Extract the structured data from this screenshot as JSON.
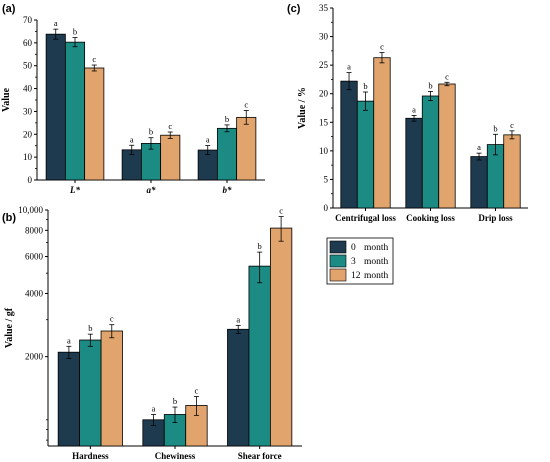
{
  "colors": {
    "0 month": "#1e3a4e",
    "3 month": "#1c8b84",
    "12 month": "#e1a46c"
  },
  "legend": {
    "entries": [
      {
        "num": "0",
        "unit": "month",
        "color": "#1e3a4e"
      },
      {
        "num": "3",
        "unit": "month",
        "color": "#1c8b84"
      },
      {
        "num": "12",
        "unit": "month",
        "color": "#e1a46c"
      }
    ]
  },
  "chart_data": [
    {
      "panel": "(a)",
      "type": "bar",
      "ylabel": "Value",
      "ylim": [
        0,
        70
      ],
      "yticks": [
        0,
        10,
        20,
        30,
        40,
        50,
        60,
        70
      ],
      "categories": [
        "L*",
        "a*",
        "b*"
      ],
      "italic_categories": true,
      "series": [
        {
          "name": "0 month",
          "values": [
            63.8,
            13.2,
            13.1
          ],
          "errors": [
            2.2,
            2.0,
            2.0
          ],
          "letters": [
            "a",
            "a",
            "a"
          ]
        },
        {
          "name": "3 month",
          "values": [
            60.3,
            16.0,
            22.6
          ],
          "errors": [
            2.0,
            2.5,
            1.5
          ],
          "letters": [
            "b",
            "b",
            "b"
          ]
        },
        {
          "name": "12 month",
          "values": [
            49.0,
            19.6,
            27.4
          ],
          "errors": [
            1.3,
            1.4,
            3.0
          ],
          "letters": [
            "c",
            "c",
            "c"
          ]
        }
      ]
    },
    {
      "panel": "(b)",
      "type": "bar",
      "ylabel": "Value / gf",
      "yscale": "log",
      "ylim": [
        750,
        10000
      ],
      "yticks": [
        2000,
        4000,
        6000,
        8000,
        10000
      ],
      "ytick_labels": [
        "2000",
        "4000",
        "6000",
        "8000",
        "10,000"
      ],
      "categories": [
        "Hardness",
        "Chewiness",
        "Shear force"
      ],
      "series": [
        {
          "name": "0 month",
          "values": [
            2100,
            1000,
            2700
          ],
          "errors": [
            140,
            60,
            120
          ],
          "letters": [
            "a",
            "a",
            "a"
          ]
        },
        {
          "name": "3 month",
          "values": [
            2400,
            1060,
            5400
          ],
          "errors": [
            160,
            90,
            900
          ],
          "letters": [
            "b",
            "b",
            "b"
          ]
        },
        {
          "name": "12 month",
          "values": [
            2650,
            1170,
            8200
          ],
          "errors": [
            190,
            120,
            1100
          ],
          "letters": [
            "c",
            "c",
            "c"
          ]
        }
      ]
    },
    {
      "panel": "(c)",
      "type": "bar",
      "ylabel": "Value / %",
      "ylim": [
        0,
        35
      ],
      "yticks": [
        0,
        5,
        10,
        15,
        20,
        25,
        30,
        35
      ],
      "categories": [
        "Centrifugal loss",
        "Cooking loss",
        "Drip loss"
      ],
      "series": [
        {
          "name": "0 month",
          "values": [
            22.2,
            15.7,
            9.0
          ],
          "errors": [
            1.5,
            0.5,
            0.6
          ],
          "letters": [
            "a",
            "a",
            "a"
          ]
        },
        {
          "name": "3 month",
          "values": [
            18.7,
            19.6,
            11.1
          ],
          "errors": [
            1.6,
            0.8,
            1.8
          ],
          "letters": [
            "b",
            "b",
            "b"
          ]
        },
        {
          "name": "12 month",
          "values": [
            26.3,
            21.7,
            12.8
          ],
          "errors": [
            0.9,
            0.3,
            0.7
          ],
          "letters": [
            "c",
            "c",
            "c"
          ]
        }
      ]
    }
  ]
}
